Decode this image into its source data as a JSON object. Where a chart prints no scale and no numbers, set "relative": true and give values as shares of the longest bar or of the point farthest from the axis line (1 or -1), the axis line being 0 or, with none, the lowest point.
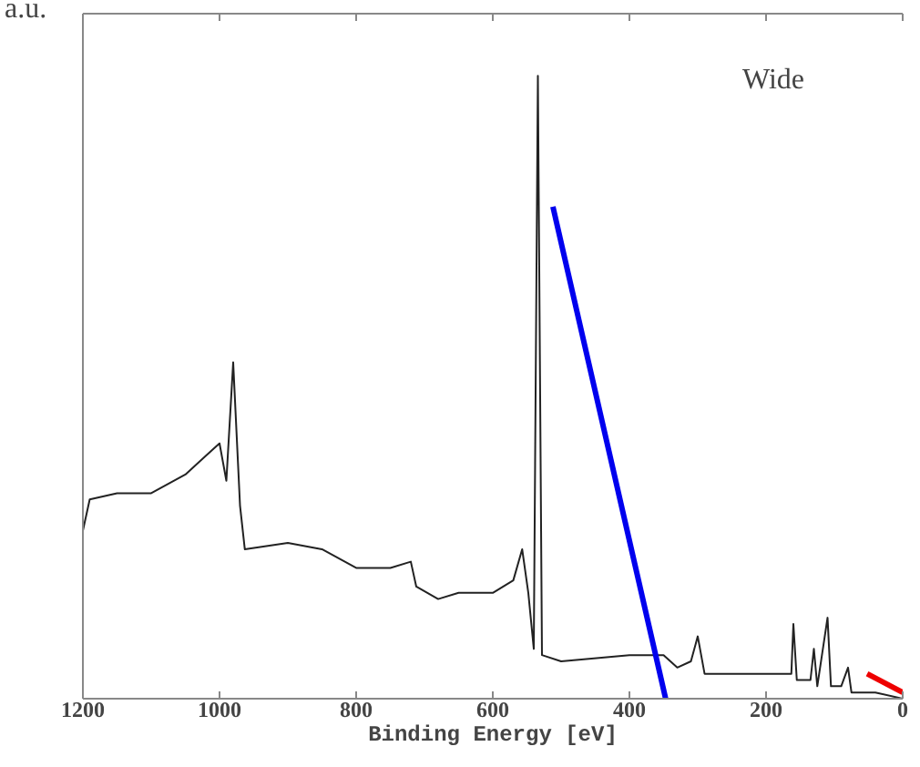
{
  "chart_data": {
    "type": "line",
    "relative": true,
    "xlabel": "Binding Energy [eV]",
    "ylabel": "a.u.",
    "annotations": [
      "Wide"
    ],
    "xlim": [
      1200,
      0
    ],
    "xticks": [
      1200,
      1000,
      800,
      600,
      400,
      200,
      0
    ],
    "tick_labels": "x",
    "grid": false,
    "marker": "none",
    "line_style": "solid",
    "series": [
      {
        "color": "#222222",
        "x": [
          1200,
          1190,
          1150,
          1100,
          1050,
          1010,
          1000,
          990,
          980,
          970,
          963,
          900,
          850,
          800,
          750,
          720,
          712,
          680,
          650,
          600,
          570,
          557,
          548,
          540,
          534,
          528,
          500,
          400,
          350,
          330,
          310,
          300,
          290,
          200,
          170,
          163,
          160,
          155,
          135,
          130,
          125,
          110,
          105,
          90,
          80,
          75,
          40,
          0
        ],
        "values": [
          0.27,
          0.32,
          0.33,
          0.33,
          0.36,
          0.4,
          0.41,
          0.35,
          0.54,
          0.31,
          0.24,
          0.25,
          0.24,
          0.21,
          0.21,
          0.22,
          0.18,
          0.16,
          0.17,
          0.17,
          0.19,
          0.24,
          0.17,
          0.08,
          1.0,
          0.07,
          0.06,
          0.07,
          0.07,
          0.05,
          0.06,
          0.1,
          0.04,
          0.04,
          0.04,
          0.04,
          0.12,
          0.03,
          0.03,
          0.08,
          0.02,
          0.13,
          0.02,
          0.02,
          0.05,
          0.01,
          0.01,
          0.0
        ]
      },
      {
        "color": "#0000ee",
        "x": [
          512,
          347
        ],
        "values": [
          0.79,
          0.0
        ]
      },
      {
        "color": "#ee0000",
        "x": [
          52,
          0
        ],
        "values": [
          0.04,
          0.01
        ]
      }
    ]
  }
}
